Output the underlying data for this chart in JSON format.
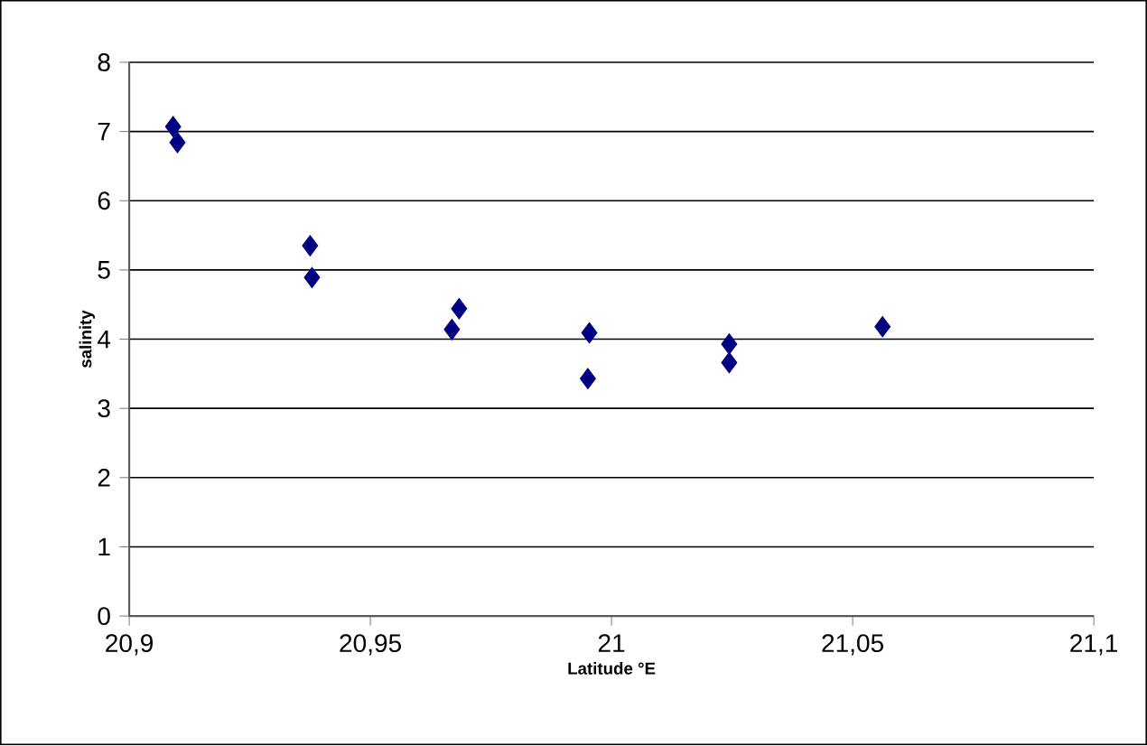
{
  "chart_data": {
    "type": "scatter",
    "xlabel": "Latitude °E",
    "ylabel": "salinity",
    "x": [
      20.9091,
      20.91,
      20.9375,
      20.9379,
      20.9684,
      20.9669,
      20.9954,
      20.9951,
      21.0244,
      21.0244,
      21.0562
    ],
    "values": [
      7.07,
      6.84,
      5.35,
      4.89,
      4.44,
      4.14,
      4.09,
      3.43,
      3.93,
      3.66,
      4.18
    ],
    "color": "#000080",
    "marker": "diamond",
    "grid": "y",
    "xlim": [
      20.9,
      21.1
    ],
    "xticks": [
      {
        "value": 20.9,
        "label": "20,9"
      },
      {
        "value": 20.95,
        "label": "20,95"
      },
      21,
      {
        "value": 21.05,
        "label": "21,05"
      },
      {
        "value": 21.1,
        "label": "21,1"
      }
    ],
    "ylim": [
      0,
      8
    ],
    "yticks": [
      0,
      1,
      2,
      3,
      4,
      5,
      6,
      7,
      8
    ]
  }
}
